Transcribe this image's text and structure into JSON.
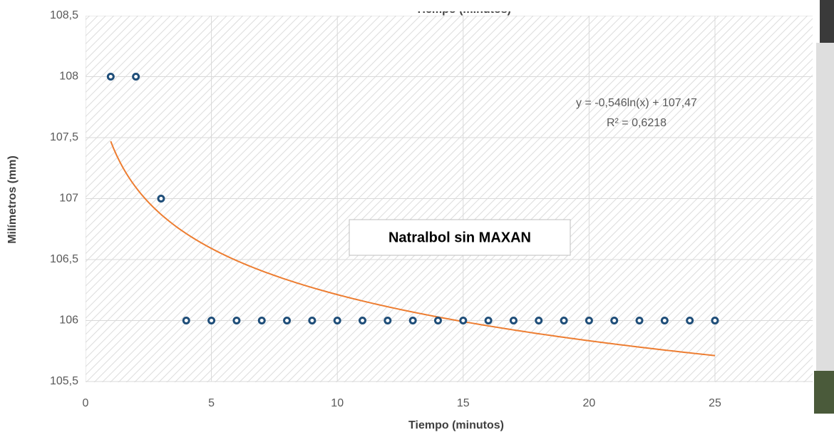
{
  "chart_data": {
    "type": "scatter",
    "x_label": "Tiempo (minutos)",
    "y_label": "Milímetros (mm)",
    "top_cut_label": "Tiempo (minutos)",
    "annotation": "Natralbol sin MAXAN",
    "series": [
      {
        "color": "#1f4e79",
        "x": [
          1,
          2,
          3,
          4,
          5,
          6,
          7,
          8,
          9,
          10,
          11,
          12,
          13,
          14,
          15,
          16,
          17,
          18,
          19,
          20,
          21,
          22,
          23,
          24,
          25
        ],
        "values": [
          108,
          108,
          107,
          106,
          106,
          106,
          106,
          106,
          106,
          106,
          106,
          106,
          106,
          106,
          106,
          106,
          106,
          106,
          106,
          106,
          106,
          106,
          106,
          106,
          106
        ]
      }
    ],
    "trendline": {
      "kind": "log",
      "a": -0.546,
      "b": 107.47,
      "color": "#ed7d31",
      "equation": "y = -0,546ln(x) + 107,47",
      "r2": "R² = 0,6218"
    },
    "xlim": [
      0,
      30
    ],
    "xticks": [
      0,
      5,
      10,
      15,
      20,
      25
    ],
    "ylim": [
      105.5,
      108.5
    ],
    "yticks": [
      {
        "value": 105.5,
        "label": "105,5"
      },
      106,
      {
        "value": 106.5,
        "label": "106,5"
      },
      107,
      {
        "value": 107.5,
        "label": "107,5"
      },
      108,
      {
        "value": 108.5,
        "label": "108,5"
      }
    ],
    "grid": true
  }
}
